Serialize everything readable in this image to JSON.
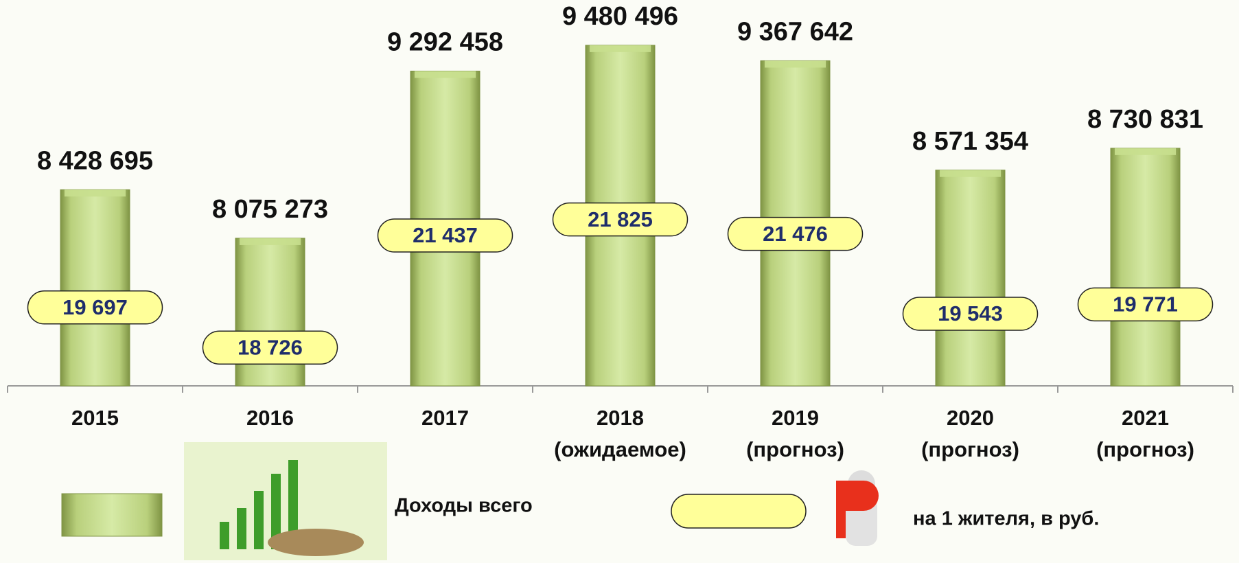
{
  "chart_data": {
    "type": "bar",
    "categories": [
      "2015",
      "2016",
      "2017",
      "2018 (ожидаемое)",
      "2019 (прогноз)",
      "2020 (прогноз)",
      "2021 (прогноз)"
    ],
    "series": [
      {
        "name": "Доходы всего",
        "color": "#c8df8e",
        "values": [
          8428695,
          8075273,
          9292458,
          9480496,
          9367642,
          8571354,
          8730831
        ],
        "value_labels": [
          "8 428 695",
          "8 075 273",
          "9 292 458",
          "9 480 496",
          "9 367 642",
          "8 571 354",
          "8 730 831"
        ]
      },
      {
        "name": "на 1 жителя, в руб.",
        "color": "#ffff99",
        "axis": "y2",
        "values": [
          19697,
          18726,
          21437,
          21825,
          21476,
          19543,
          19771
        ],
        "value_labels": [
          "19 697",
          "18 726",
          "21 437",
          "21 825",
          "21 476",
          "19 543",
          "19 771"
        ]
      }
    ],
    "ylim": [
      7000000,
      9800000
    ],
    "y2lim": [
      17800,
      27100
    ]
  }
}
